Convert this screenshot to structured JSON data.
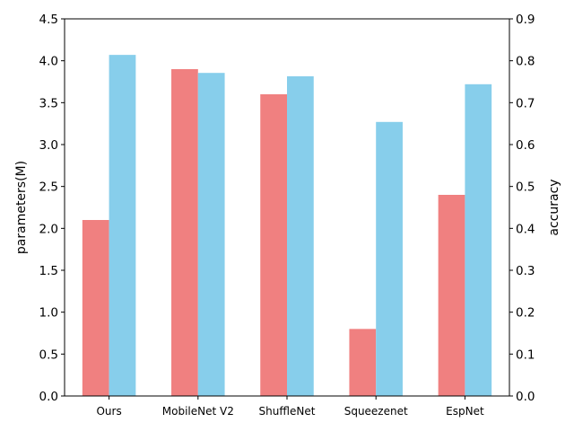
{
  "chart_data": {
    "type": "bar",
    "categories": [
      "Ours",
      "MobileNet V2",
      "ShuffleNet",
      "Squeezenet",
      "EspNet"
    ],
    "series": [
      {
        "values": [
          2.1,
          3.9,
          3.6,
          0.8,
          2.4
        ],
        "axis": "left",
        "color": "#f08080"
      },
      {
        "values": [
          0.814,
          0.771,
          0.763,
          0.654,
          0.744
        ],
        "axis": "right",
        "color": "#87ceeb"
      }
    ],
    "y_left": {
      "label": "parameters(M)",
      "lim": [
        0,
        4.5
      ],
      "ticks": [
        "0.0",
        "0.5",
        "1.0",
        "1.5",
        "2.0",
        "2.5",
        "3.0",
        "3.5",
        "4.0",
        "4.5"
      ]
    },
    "y_right": {
      "label": "accuracy",
      "lim": [
        0,
        0.9
      ],
      "ticks": [
        "0.0",
        "0.1",
        "0.2",
        "0.3",
        "0.4",
        "0.5",
        "0.6",
        "0.7",
        "0.8",
        "0.9"
      ]
    },
    "grid": false,
    "legend": "none"
  }
}
